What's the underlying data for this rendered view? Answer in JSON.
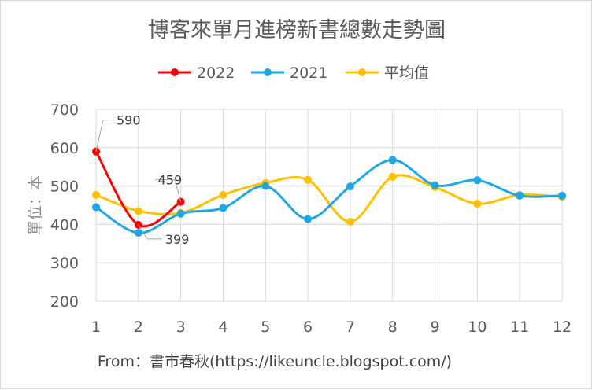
{
  "chart_data": {
    "type": "line",
    "title": "博客來單月進榜新書總數走勢圖",
    "ylabel": "單位：本",
    "xlabel": "",
    "x": [
      1,
      2,
      3,
      4,
      5,
      6,
      7,
      8,
      9,
      10,
      11,
      12
    ],
    "ylim": [
      200,
      700
    ],
    "yticks": [
      200,
      300,
      400,
      500,
      600,
      700
    ],
    "grid": true,
    "legend_position": "top",
    "smooth": true,
    "series": [
      {
        "name": "2022",
        "color": "#ff0000",
        "values": [
          590,
          399,
          459,
          null,
          null,
          null,
          null,
          null,
          null,
          null,
          null,
          null
        ]
      },
      {
        "name": "2021",
        "color": "#1ea7e6",
        "values": [
          445,
          378,
          428,
          443,
          500,
          414,
          499,
          568,
          502,
          515,
          475,
          475
        ]
      },
      {
        "name": "平均值",
        "color": "#ffc000",
        "values": [
          477,
          435,
          430,
          477,
          508,
          516,
          407,
          524,
          497,
          454,
          477,
          472
        ]
      }
    ],
    "annotations": [
      {
        "series": "2022",
        "x": 1,
        "text": "590"
      },
      {
        "series": "2022",
        "x": 2,
        "text": "399"
      },
      {
        "series": "2022",
        "x": 3,
        "text": "459"
      }
    ],
    "footer": "From：書市春秋(https://likeuncle.blogspot.com/)"
  }
}
